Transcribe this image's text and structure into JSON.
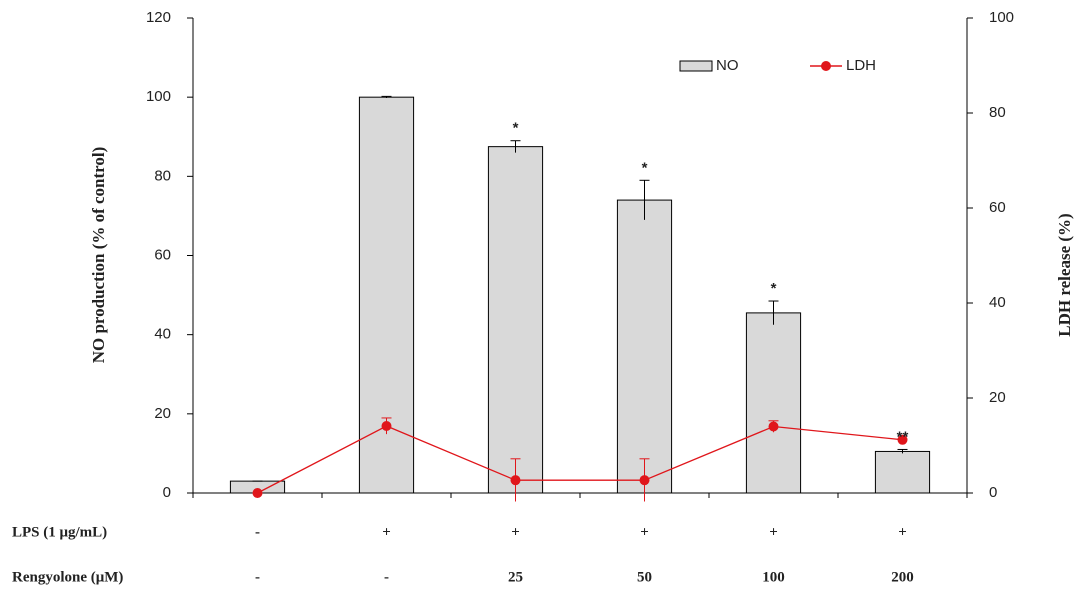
{
  "chart_data": {
    "type": "bar-line",
    "y_label": "NO production (% of control)",
    "y2_label": "LDH release (%)",
    "category_rows": [
      {
        "name": "LPS (1 μg/mL)",
        "labels": [
          "-",
          "+",
          "+",
          "+",
          "+",
          "+"
        ]
      },
      {
        "name": "Rengyolone (μM)",
        "labels": [
          "-",
          "-",
          "25",
          "50",
          "100",
          "200"
        ]
      }
    ],
    "series": [
      {
        "name": "NO",
        "kind": "bar",
        "color": "#d9d9d9",
        "values": [
          3,
          100,
          87.5,
          74,
          45.5,
          10.5
        ],
        "errors": [
          0,
          0.2,
          1.5,
          5,
          3,
          0.5
        ]
      },
      {
        "name": "LDH",
        "kind": "line",
        "axis": "y2",
        "color": "#e0161b",
        "values": [
          0,
          14.1,
          2.7,
          2.7,
          14,
          11.2
        ],
        "errors": [
          0,
          1.7,
          4.5,
          4.5,
          1.2,
          0
        ]
      }
    ],
    "annotations": [
      null,
      null,
      "*",
      "*",
      "*",
      "**"
    ],
    "ylim": [
      0,
      120
    ],
    "yticks": [
      0,
      20,
      40,
      60,
      80,
      100,
      120
    ],
    "y2lim": [
      0,
      100
    ],
    "y2ticks": [
      0,
      20,
      40,
      60,
      80,
      100
    ],
    "legend": "top-right"
  }
}
